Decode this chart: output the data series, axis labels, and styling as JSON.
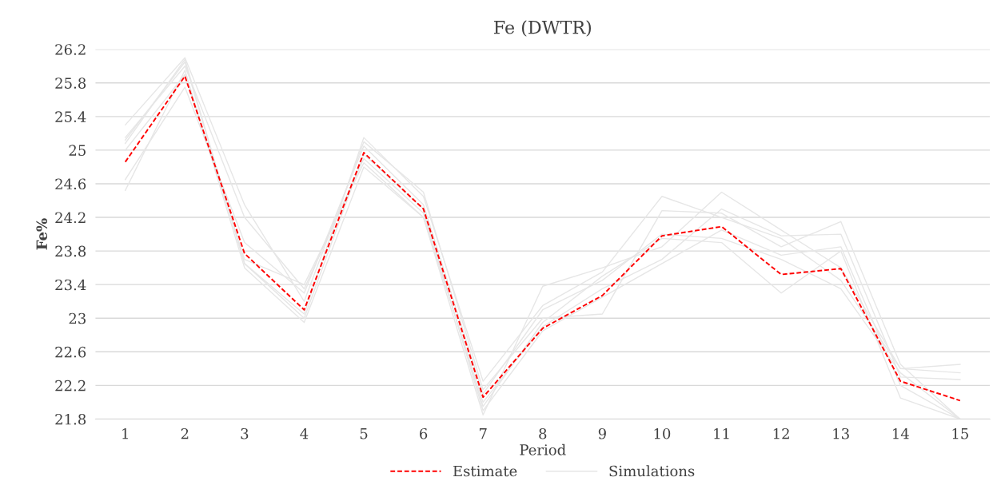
{
  "chart_data": {
    "type": "line",
    "title": "Fe (DWTR)",
    "xlabel": "Period",
    "ylabel": "Fe%",
    "categories": [
      "1",
      "2",
      "3",
      "4",
      "5",
      "6",
      "7",
      "8",
      "9",
      "10",
      "11",
      "12",
      "13",
      "14",
      "15"
    ],
    "ylim": [
      21.8,
      26.2
    ],
    "yticks": [
      21.8,
      22.2,
      22.6,
      23,
      23.4,
      23.8,
      24.2,
      24.6,
      25,
      25.4,
      25.8,
      26.2
    ],
    "grid": "y",
    "legend": "bottom",
    "marker": "none",
    "series": [
      {
        "name": "Simulations",
        "color": "#e6e6e6",
        "line_style": "solid",
        "values": [
          25.12,
          26.05,
          23.65,
          23.05,
          25.15,
          24.45,
          22.25,
          23.15,
          23.55,
          24.45,
          24.2,
          23.95,
          23.45,
          22.4,
          22.45
        ]
      },
      {
        "color": "#e6e6e6",
        "line_style": "solid",
        "values": [
          24.52,
          25.95,
          23.6,
          22.95,
          24.8,
          24.2,
          21.85,
          23.38,
          23.6,
          23.85,
          24.5,
          24.05,
          23.6,
          22.4,
          22.35
        ]
      },
      {
        "color": "#e6e6e6",
        "line_style": "solid",
        "values": [
          25.3,
          26.1,
          24.35,
          23.2,
          25.1,
          24.5,
          22.15,
          23.0,
          23.05,
          24.28,
          24.25,
          23.85,
          24.15,
          22.45,
          21.8
        ]
      },
      {
        "color": "#e6e6e6",
        "line_style": "solid",
        "values": [
          25.15,
          26.0,
          24.2,
          23.35,
          24.9,
          24.25,
          21.95,
          22.95,
          23.5,
          23.95,
          23.9,
          23.3,
          23.8,
          22.05,
          21.8
        ]
      },
      {
        "color": "#e6e6e6",
        "line_style": "solid",
        "values": [
          25.0,
          25.9,
          23.7,
          23.4,
          24.85,
          24.2,
          22.0,
          22.9,
          23.35,
          23.7,
          24.3,
          23.98,
          24.0,
          22.3,
          22.27
        ]
      },
      {
        "color": "#e6e6e6",
        "line_style": "solid",
        "values": [
          24.65,
          25.75,
          23.9,
          23.3,
          25.05,
          24.35,
          22.1,
          23.1,
          23.45,
          24.0,
          23.95,
          23.7,
          23.35,
          22.35,
          21.8
        ]
      },
      {
        "color": "#e6e6e6",
        "line_style": "solid",
        "values": [
          25.08,
          26.08,
          23.65,
          23.0,
          24.95,
          24.3,
          21.9,
          22.85,
          23.25,
          23.65,
          24.05,
          23.75,
          23.85,
          22.2,
          21.8
        ]
      },
      {
        "name": "Estimate",
        "color": "#ff0000",
        "line_style": "dashed",
        "values": [
          24.86,
          25.88,
          23.77,
          23.1,
          24.97,
          24.3,
          22.06,
          22.88,
          23.27,
          23.98,
          24.09,
          23.52,
          23.59,
          22.25,
          22.02
        ]
      }
    ]
  }
}
